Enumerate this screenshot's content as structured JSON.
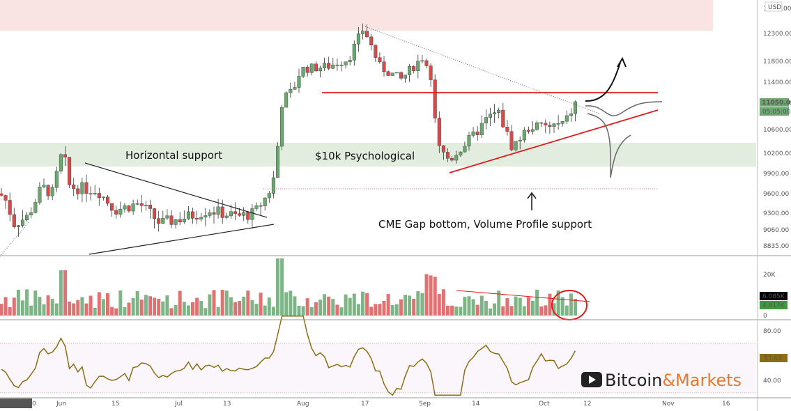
{
  "colors": {
    "up": "#6aa870",
    "down": "#d64a4a",
    "zone_resistance": "#f9e3e3",
    "zone_support": "#e2ede0",
    "red_line": "#e01b1b",
    "rsi": "#8a6d14",
    "price_tag": "#6aa870",
    "vol_red_tag": "#000000",
    "vol_green_tag": "#3f9a3f",
    "rsi_tag": "#8a6d14",
    "brand_orange": "#e8782a"
  },
  "currency": "USD",
  "price_axis": {
    "ticks": [
      "12300.00",
      "11800.00",
      "11400.00",
      "11050.00",
      "10600.00",
      "10200.00",
      "9900.00",
      "9600.00",
      "9300.00",
      "9060.00",
      "8835.00"
    ],
    "tick_values": [
      12300,
      11800,
      11400,
      11050,
      10600,
      10200,
      9900,
      9600,
      9300,
      9060,
      8835
    ],
    "top_partial": "12…0.00",
    "current_price": "11050.00",
    "countdown": "05:05:00"
  },
  "volume_axis": {
    "ticks": [
      "20K",
      "0"
    ],
    "tag_red": "6.085K",
    "tag_green": "4.817K"
  },
  "rsi_axis": {
    "ticks": [
      "80.00",
      "40.00"
    ],
    "current": "57.63"
  },
  "time_axis": {
    "start_label": "11 May '20",
    "labels": [
      "Jun",
      "15",
      "Jul",
      "13",
      "Aug",
      "17",
      "Sep",
      "14",
      "Oct",
      "12",
      "Nov",
      "16"
    ]
  },
  "annotations": {
    "horizontal_support": "Horizontal support",
    "psychological": "$10k Psychological",
    "cme_gap": "CME Gap bottom, Volume Profile support"
  },
  "brand": {
    "part1": "Bitcoin",
    "amp": "&",
    "part2": "Markets"
  },
  "chart_data": {
    "type": "candlestick",
    "series": [
      {
        "name": "",
        "values_ohlc_approx": [
          [
            9450,
            9700,
            9100,
            9250
          ],
          [
            9250,
            9500,
            8950,
            9050
          ],
          [
            9050,
            9350,
            8800,
            9250
          ],
          [
            9250,
            9650,
            9150,
            9550
          ],
          [
            9550,
            9800,
            9300,
            9700
          ],
          [
            9700,
            10400,
            9600,
            10250
          ],
          [
            10250,
            10300,
            9450,
            9700
          ],
          [
            9700,
            9800,
            9300,
            9550
          ],
          [
            9550,
            9850,
            9400,
            9700
          ],
          [
            9700,
            9900,
            9550,
            9800
          ],
          [
            9800,
            9900,
            9350,
            9400
          ],
          [
            9400,
            9550,
            9150,
            9300
          ],
          [
            9300,
            9450,
            9100,
            9400
          ],
          [
            9400,
            9500,
            9200,
            9300
          ],
          [
            9300,
            9500,
            9200,
            9400
          ],
          [
            9400,
            9700,
            9350,
            9650
          ],
          [
            9650,
            9750,
            9100,
            9150
          ],
          [
            9150,
            9250,
            8950,
            9100
          ],
          [
            9100,
            9250,
            9000,
            9200
          ],
          [
            9200,
            9300,
            9050,
            9250
          ],
          [
            9250,
            9450,
            9150,
            9400
          ],
          [
            9400,
            9500,
            9250,
            9300
          ],
          [
            9300,
            9350,
            9150,
            9200
          ],
          [
            9200,
            9300,
            9100,
            9250
          ],
          [
            9250,
            9450,
            9200,
            9400
          ],
          [
            9400,
            9700,
            9350,
            9650
          ],
          [
            9650,
            10200,
            9600,
            10100
          ],
          [
            10100,
            11400,
            10050,
            11200
          ],
          [
            11200,
            11500,
            10800,
            11100
          ],
          [
            11100,
            11900,
            11000,
            11800
          ],
          [
            11800,
            11850,
            11300,
            11450
          ],
          [
            11450,
            11750,
            11200,
            11700
          ],
          [
            11700,
            11800,
            11500,
            11650
          ],
          [
            11650,
            11950,
            11550,
            11850
          ],
          [
            11850,
            12450,
            11700,
            12000
          ],
          [
            12000,
            12100,
            11300,
            11550
          ],
          [
            11550,
            11800,
            11300,
            11650
          ],
          [
            11650,
            11700,
            11100,
            11500
          ],
          [
            11500,
            11700,
            11250,
            11550
          ],
          [
            11550,
            11750,
            11350,
            11700
          ],
          [
            11700,
            12050,
            11600,
            11850
          ],
          [
            11850,
            11900,
            11200,
            11300
          ],
          [
            11300,
            11400,
            10000,
            10200
          ],
          [
            10200,
            10450,
            9900,
            10350
          ],
          [
            10350,
            10400,
            9850,
            10100
          ],
          [
            10100,
            10450,
            10050,
            10300
          ],
          [
            10300,
            10450,
            10150,
            10400
          ],
          [
            10400,
            10800,
            10350,
            10700
          ],
          [
            10700,
            11100,
            10600,
            10900
          ],
          [
            10900,
            11050,
            10700,
            10950
          ],
          [
            10950,
            11100,
            10300,
            10400
          ],
          [
            10400,
            10500,
            10200,
            10350
          ],
          [
            10350,
            10700,
            10300,
            10600
          ],
          [
            10600,
            10800,
            10500,
            10700
          ],
          [
            10700,
            10900,
            10600,
            10750
          ],
          [
            10750,
            10800,
            10500,
            10550
          ],
          [
            10550,
            10650,
            10450,
            10600
          ],
          [
            10600,
            10850,
            10550,
            10800
          ],
          [
            10800,
            11100,
            10700,
            11050
          ]
        ]
      }
    ],
    "resistance_zone": [
      12550,
      12800
    ],
    "support_zone": [
      9950,
      10300
    ],
    "resistance_line": 11200,
    "cme_gap_level": 9650,
    "xlabel": "",
    "ylabel": ""
  }
}
